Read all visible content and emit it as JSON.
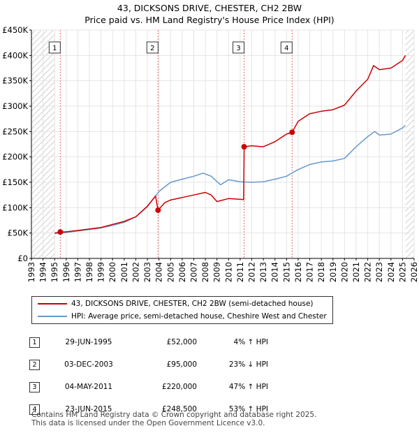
{
  "title": {
    "line1": "43, DICKSONS DRIVE, CHESTER, CH2 2BW",
    "line2": "Price paid vs. HM Land Registry's House Price Index (HPI)"
  },
  "colors": {
    "property": "#cc0000",
    "hpi": "#6699cc",
    "marker_line": "#ee6666",
    "hatch": "#b0b0b0"
  },
  "legend": {
    "property_label": "43, DICKSONS DRIVE, CHESTER, CH2 2BW (semi-detached house)",
    "hpi_label": "HPI: Average price, semi-detached house, Cheshire West and Chester"
  },
  "sales": [
    {
      "num": "1",
      "date": "29-JUN-1995",
      "price": "£52,000",
      "hpi_rel": "4% ↑ HPI"
    },
    {
      "num": "2",
      "date": "03-DEC-2003",
      "price": "£95,000",
      "hpi_rel": "23% ↓ HPI"
    },
    {
      "num": "3",
      "date": "04-MAY-2011",
      "price": "£220,000",
      "hpi_rel": "47% ↑ HPI"
    },
    {
      "num": "4",
      "date": "23-JUN-2015",
      "price": "£248,500",
      "hpi_rel": "53% ↑ HPI"
    }
  ],
  "footer": {
    "line1": "Contains HM Land Registry data © Crown copyright and database right 2025.",
    "line2": "This data is licensed under the Open Government Licence v3.0."
  },
  "chart_data": {
    "type": "line",
    "xlim": [
      1993,
      2026
    ],
    "ylim": [
      0,
      450000
    ],
    "x_ticks": [
      1993,
      1994,
      1995,
      1996,
      1997,
      1998,
      1999,
      2000,
      2001,
      2002,
      2003,
      2004,
      2005,
      2006,
      2007,
      2008,
      2009,
      2010,
      2011,
      2012,
      2013,
      2014,
      2015,
      2016,
      2017,
      2018,
      2019,
      2020,
      2021,
      2022,
      2023,
      2024,
      2025,
      2026
    ],
    "y_ticks": [
      0,
      50000,
      100000,
      150000,
      200000,
      250000,
      300000,
      350000,
      400000,
      450000
    ],
    "y_tick_labels": [
      "£0",
      "£50K",
      "£100K",
      "£150K",
      "£200K",
      "£250K",
      "£300K",
      "£350K",
      "£400K",
      "£450K"
    ],
    "data_start": 1995.0,
    "data_end": 2025.25,
    "sale_markers": [
      {
        "label": "1",
        "x": 1995.49,
        "y": 52000
      },
      {
        "label": "2",
        "x": 2003.92,
        "y": 95000
      },
      {
        "label": "3",
        "x": 2011.34,
        "y": 220000
      },
      {
        "label": "4",
        "x": 2015.48,
        "y": 248500
      }
    ],
    "series": [
      {
        "name": "43, DICKSONS DRIVE, CHESTER, CH2 2BW (semi-detached house)",
        "x": [
          1995.0,
          1995.49,
          1996,
          1997,
          1998,
          1999,
          2000,
          2001,
          2002,
          2003,
          2003.7,
          2003.92,
          2004.5,
          2005,
          2006,
          2007,
          2008,
          2008.5,
          2009,
          2010,
          2011.3,
          2011.34,
          2012,
          2013,
          2014,
          2015,
          2015.48,
          2016,
          2017,
          2018,
          2019,
          2020,
          2021,
          2022,
          2022.5,
          2023,
          2024,
          2025,
          2025.25
        ],
        "y": [
          50000,
          52000,
          52500,
          55000,
          58000,
          61000,
          67000,
          73000,
          82000,
          103000,
          123000,
          95000,
          110000,
          115000,
          120000,
          125000,
          130000,
          125000,
          112000,
          118000,
          116000,
          220000,
          222000,
          220000,
          230000,
          245000,
          248500,
          270000,
          285000,
          290000,
          293000,
          302000,
          330000,
          353000,
          380000,
          372000,
          375000,
          390000,
          400000
        ]
      },
      {
        "name": "HPI: Average price, semi-detached house, Cheshire West and Chester",
        "x": [
          1995.0,
          1996,
          1997,
          1998,
          1999,
          2000,
          2001,
          2002,
          2003,
          2004,
          2005,
          2006,
          2007,
          2007.8,
          2008.5,
          2009.3,
          2010,
          2011,
          2012,
          2013,
          2014,
          2015,
          2016,
          2017,
          2018,
          2019,
          2020,
          2021,
          2022,
          2022.6,
          2023,
          2024,
          2025,
          2025.25
        ],
        "y": [
          49000,
          51000,
          54000,
          57000,
          60000,
          65000,
          71000,
          82000,
          102000,
          132000,
          150000,
          156000,
          162000,
          168000,
          162000,
          145000,
          155000,
          151000,
          150000,
          151000,
          156000,
          162000,
          175000,
          185000,
          190000,
          192000,
          197000,
          220000,
          240000,
          250000,
          243000,
          245000,
          257000,
          262000
        ]
      }
    ]
  }
}
